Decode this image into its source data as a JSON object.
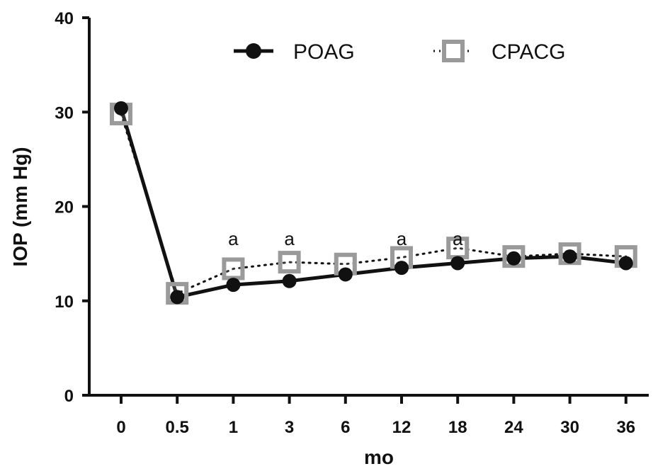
{
  "chart_data": {
    "type": "line",
    "title": "",
    "xlabel": "mo",
    "ylabel": "IOP (mm Hg)",
    "categories": [
      "0",
      "0.5",
      "1",
      "3",
      "6",
      "12",
      "18",
      "24",
      "30",
      "36"
    ],
    "ylim": [
      0,
      40
    ],
    "yticks": [
      "0",
      "10",
      "20",
      "30",
      "40"
    ],
    "grid": false,
    "legend_position": "top",
    "series": [
      {
        "name": "POAG",
        "values": [
          30.4,
          10.4,
          11.7,
          12.1,
          12.8,
          13.5,
          14.0,
          14.5,
          14.7,
          14.0
        ],
        "color": "#111111",
        "marker": "filled-circle",
        "line": "solid"
      },
      {
        "name": "CPACG",
        "values": [
          29.8,
          10.8,
          13.4,
          14.1,
          13.9,
          14.6,
          15.6,
          14.7,
          15.0,
          14.7
        ],
        "color": "#9a9a9a",
        "marker": "open-square",
        "line": "dotted"
      }
    ],
    "annotations": [
      {
        "category": "1",
        "text": "a"
      },
      {
        "category": "3",
        "text": "a"
      },
      {
        "category": "12",
        "text": "a"
      },
      {
        "category": "18",
        "text": "a"
      }
    ]
  }
}
